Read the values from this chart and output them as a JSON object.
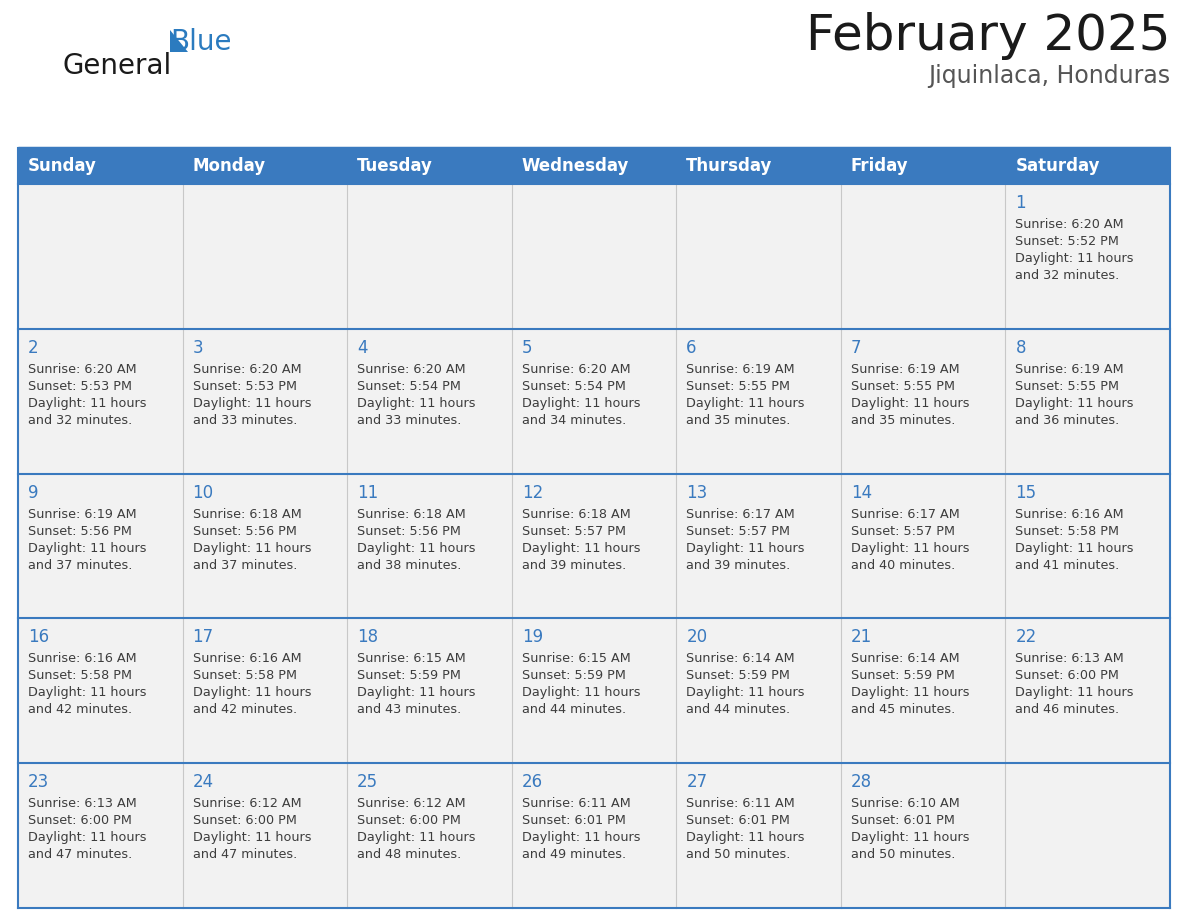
{
  "title": "February 2025",
  "subtitle": "Jiquinlaca, Honduras",
  "days_of_week": [
    "Sunday",
    "Monday",
    "Tuesday",
    "Wednesday",
    "Thursday",
    "Friday",
    "Saturday"
  ],
  "header_bg": "#3a7abf",
  "header_text_color": "#ffffff",
  "cell_bg": "#f2f2f2",
  "cell_bg_white": "#ffffff",
  "row_border_color": "#3a7abf",
  "col_border_color": "#c8c8c8",
  "day_number_color": "#3a7abf",
  "text_color": "#3d3d3d",
  "title_color": "#1a1a1a",
  "subtitle_color": "#555555",
  "logo_general_color": "#1a1a1a",
  "logo_blue_color": "#2b7bbf",
  "logo_triangle_color": "#2b7bbf",
  "calendar_data": [
    [
      null,
      null,
      null,
      null,
      null,
      null,
      {
        "day": 1,
        "sunrise": "6:20 AM",
        "sunset": "5:52 PM",
        "daylight": "11 hours and 32 minutes."
      }
    ],
    [
      {
        "day": 2,
        "sunrise": "6:20 AM",
        "sunset": "5:53 PM",
        "daylight": "11 hours and 32 minutes."
      },
      {
        "day": 3,
        "sunrise": "6:20 AM",
        "sunset": "5:53 PM",
        "daylight": "11 hours and 33 minutes."
      },
      {
        "day": 4,
        "sunrise": "6:20 AM",
        "sunset": "5:54 PM",
        "daylight": "11 hours and 33 minutes."
      },
      {
        "day": 5,
        "sunrise": "6:20 AM",
        "sunset": "5:54 PM",
        "daylight": "11 hours and 34 minutes."
      },
      {
        "day": 6,
        "sunrise": "6:19 AM",
        "sunset": "5:55 PM",
        "daylight": "11 hours and 35 minutes."
      },
      {
        "day": 7,
        "sunrise": "6:19 AM",
        "sunset": "5:55 PM",
        "daylight": "11 hours and 35 minutes."
      },
      {
        "day": 8,
        "sunrise": "6:19 AM",
        "sunset": "5:55 PM",
        "daylight": "11 hours and 36 minutes."
      }
    ],
    [
      {
        "day": 9,
        "sunrise": "6:19 AM",
        "sunset": "5:56 PM",
        "daylight": "11 hours and 37 minutes."
      },
      {
        "day": 10,
        "sunrise": "6:18 AM",
        "sunset": "5:56 PM",
        "daylight": "11 hours and 37 minutes."
      },
      {
        "day": 11,
        "sunrise": "6:18 AM",
        "sunset": "5:56 PM",
        "daylight": "11 hours and 38 minutes."
      },
      {
        "day": 12,
        "sunrise": "6:18 AM",
        "sunset": "5:57 PM",
        "daylight": "11 hours and 39 minutes."
      },
      {
        "day": 13,
        "sunrise": "6:17 AM",
        "sunset": "5:57 PM",
        "daylight": "11 hours and 39 minutes."
      },
      {
        "day": 14,
        "sunrise": "6:17 AM",
        "sunset": "5:57 PM",
        "daylight": "11 hours and 40 minutes."
      },
      {
        "day": 15,
        "sunrise": "6:16 AM",
        "sunset": "5:58 PM",
        "daylight": "11 hours and 41 minutes."
      }
    ],
    [
      {
        "day": 16,
        "sunrise": "6:16 AM",
        "sunset": "5:58 PM",
        "daylight": "11 hours and 42 minutes."
      },
      {
        "day": 17,
        "sunrise": "6:16 AM",
        "sunset": "5:58 PM",
        "daylight": "11 hours and 42 minutes."
      },
      {
        "day": 18,
        "sunrise": "6:15 AM",
        "sunset": "5:59 PM",
        "daylight": "11 hours and 43 minutes."
      },
      {
        "day": 19,
        "sunrise": "6:15 AM",
        "sunset": "5:59 PM",
        "daylight": "11 hours and 44 minutes."
      },
      {
        "day": 20,
        "sunrise": "6:14 AM",
        "sunset": "5:59 PM",
        "daylight": "11 hours and 44 minutes."
      },
      {
        "day": 21,
        "sunrise": "6:14 AM",
        "sunset": "5:59 PM",
        "daylight": "11 hours and 45 minutes."
      },
      {
        "day": 22,
        "sunrise": "6:13 AM",
        "sunset": "6:00 PM",
        "daylight": "11 hours and 46 minutes."
      }
    ],
    [
      {
        "day": 23,
        "sunrise": "6:13 AM",
        "sunset": "6:00 PM",
        "daylight": "11 hours and 47 minutes."
      },
      {
        "day": 24,
        "sunrise": "6:12 AM",
        "sunset": "6:00 PM",
        "daylight": "11 hours and 47 minutes."
      },
      {
        "day": 25,
        "sunrise": "6:12 AM",
        "sunset": "6:00 PM",
        "daylight": "11 hours and 48 minutes."
      },
      {
        "day": 26,
        "sunrise": "6:11 AM",
        "sunset": "6:01 PM",
        "daylight": "11 hours and 49 minutes."
      },
      {
        "day": 27,
        "sunrise": "6:11 AM",
        "sunset": "6:01 PM",
        "daylight": "11 hours and 50 minutes."
      },
      {
        "day": 28,
        "sunrise": "6:10 AM",
        "sunset": "6:01 PM",
        "daylight": "11 hours and 50 minutes."
      },
      null
    ]
  ]
}
